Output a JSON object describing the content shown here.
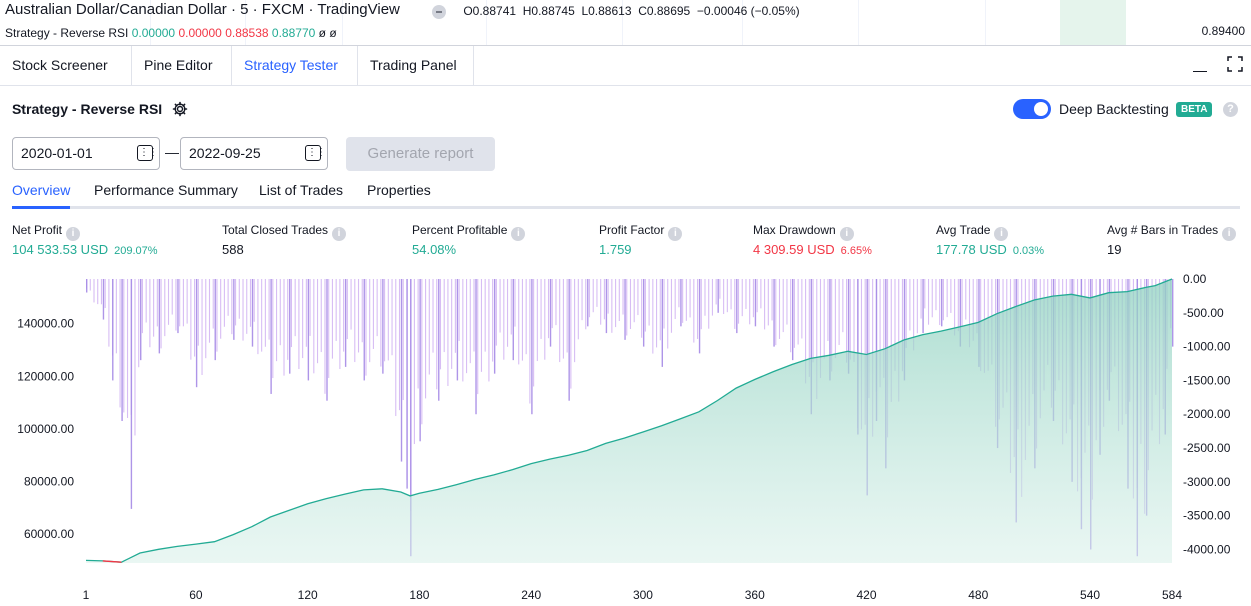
{
  "top_chart": {
    "symbol_title": "Australian Dollar/Canadian Dollar · 5 · FXCM · TradingView",
    "ohlc": {
      "o": "O0.88741",
      "h": "H0.88745",
      "l": "L0.88613",
      "c": "C0.88695",
      "change": "−0.00046 (−0.05%)"
    },
    "strategy_legend": {
      "name": "Strategy - Reverse RSI",
      "v1": "0.00000",
      "v2": "0.00000",
      "v3": "0.88538",
      "v4": "0.88770",
      "tail": "ø ø"
    },
    "price_label": "0.89400"
  },
  "bottom_tabs": [
    {
      "label": "Stock Screener",
      "has_chevron": true
    },
    {
      "label": "Pine Editor"
    },
    {
      "label": "Strategy Tester",
      "active": true
    },
    {
      "label": "Trading Panel"
    }
  ],
  "window_icons": {
    "minimize": "minimize-icon",
    "maximize": "maximize-icon"
  },
  "strategy": {
    "name": "Strategy - Reverse RSI",
    "settings_icon": "gear-icon",
    "deep_backtesting_label": "Deep Backtesting",
    "deep_backtesting_enabled": true,
    "beta_badge": "BETA",
    "help": "?"
  },
  "dates": {
    "start": "2020-01-01",
    "end": "2022-09-25",
    "separator": "—"
  },
  "generate_button": "Generate report",
  "sub_tabs": [
    {
      "label": "Overview",
      "active": true
    },
    {
      "label": "Performance Summary"
    },
    {
      "label": "List of Trades"
    },
    {
      "label": "Properties"
    }
  ],
  "metrics": [
    {
      "label": "Net Profit",
      "value": "104 533.53 USD",
      "pct": "209.07%",
      "color": "#22ab94"
    },
    {
      "label": "Total Closed Trades",
      "value": "588",
      "color": "#131722"
    },
    {
      "label": "Percent Profitable",
      "value": "54.08%",
      "color": "#22ab94"
    },
    {
      "label": "Profit Factor",
      "value": "1.759",
      "color": "#22ab94"
    },
    {
      "label": "Max Drawdown",
      "value": "4 309.59 USD",
      "pct": "6.65%",
      "color": "#f23645"
    },
    {
      "label": "Avg Trade",
      "value": "177.78 USD",
      "pct": "0.03%",
      "color": "#22ab94"
    },
    {
      "label": "Avg # Bars in Trades",
      "value": "19",
      "color": "#131722"
    }
  ],
  "chart_data": {
    "type": "area",
    "x_ticks": [
      "1",
      "60",
      "120",
      "180",
      "240",
      "300",
      "360",
      "420",
      "480",
      "540",
      "584"
    ],
    "left_axis": {
      "ticks": [
        "140000.00",
        "120000.00",
        "100000.00",
        "80000.00",
        "60000.00"
      ],
      "values": [
        140000,
        120000,
        100000,
        80000,
        60000
      ],
      "range": [
        49000,
        157000
      ]
    },
    "right_axis": {
      "ticks": [
        "0.00",
        "-500.00",
        "-1000.00",
        "-1500.00",
        "-2000.00",
        "-2500.00",
        "-3000.00",
        "-3500.00",
        "-4000.00"
      ],
      "values": [
        0,
        -500,
        -1000,
        -1500,
        -2000,
        -2500,
        -3000,
        -3500,
        -4000
      ],
      "range": [
        -4200,
        0
      ]
    },
    "series": [
      {
        "name": "Equity",
        "kind": "line",
        "color": "#22ab94",
        "x": [
          1,
          10,
          20,
          30,
          40,
          50,
          60,
          70,
          80,
          90,
          100,
          110,
          120,
          130,
          140,
          150,
          160,
          170,
          175,
          180,
          190,
          200,
          210,
          220,
          230,
          240,
          250,
          260,
          270,
          280,
          290,
          300,
          310,
          320,
          330,
          340,
          350,
          360,
          370,
          380,
          390,
          400,
          410,
          420,
          430,
          440,
          450,
          460,
          470,
          480,
          490,
          500,
          510,
          520,
          530,
          540,
          550,
          560,
          570,
          575,
          584
        ],
        "y": [
          50000,
          49800,
          49300,
          52800,
          54200,
          55300,
          56200,
          57100,
          59800,
          62800,
          66500,
          69000,
          71500,
          73500,
          75200,
          76800,
          77200,
          76000,
          74500,
          75500,
          77000,
          78800,
          80800,
          82500,
          84500,
          86800,
          88500,
          90000,
          91800,
          94500,
          96500,
          98800,
          101200,
          103800,
          106500,
          110800,
          115500,
          118800,
          121800,
          124500,
          126800,
          128000,
          129500,
          128300,
          130500,
          133800,
          135800,
          137200,
          138800,
          140500,
          143800,
          146500,
          149000,
          150500,
          151200,
          149800,
          151800,
          152200,
          153800,
          154500,
          157000
        ]
      },
      {
        "name": "Drawdown",
        "kind": "bars",
        "color": "#c9a7f0",
        "x": [
          1,
          10,
          15,
          20,
          25,
          30,
          40,
          50,
          60,
          70,
          80,
          90,
          100,
          110,
          120,
          130,
          140,
          150,
          160,
          170,
          173,
          175,
          180,
          190,
          200,
          210,
          220,
          230,
          240,
          250,
          260,
          270,
          280,
          290,
          300,
          310,
          320,
          330,
          340,
          350,
          360,
          370,
          380,
          390,
          400,
          410,
          415,
          420,
          425,
          430,
          440,
          450,
          460,
          470,
          480,
          490,
          500,
          510,
          520,
          530,
          535,
          540,
          545,
          550,
          560,
          565,
          570,
          580,
          584
        ],
        "y": [
          -200,
          -600,
          -1500,
          -2100,
          -3400,
          -1200,
          -1100,
          -800,
          -1600,
          -1200,
          -900,
          -1000,
          -1700,
          -1400,
          -1500,
          -1800,
          -1300,
          -1500,
          -1400,
          -2700,
          -3100,
          -4100,
          -2400,
          -1800,
          -1500,
          -2000,
          -1400,
          -1200,
          -2000,
          -1000,
          -1800,
          -700,
          -800,
          -900,
          -1000,
          -1300,
          -700,
          -1100,
          -500,
          -800,
          -700,
          -1000,
          -1200,
          -2000,
          -1500,
          -1400,
          -2300,
          -3200,
          -2100,
          -2800,
          -1500,
          -800,
          -700,
          -1000,
          -1300,
          -2500,
          -3600,
          -2800,
          -2100,
          -3000,
          -3700,
          -4000,
          -2600,
          -1800,
          -3100,
          -4100,
          -3500,
          -2300,
          -1000
        ]
      }
    ]
  }
}
